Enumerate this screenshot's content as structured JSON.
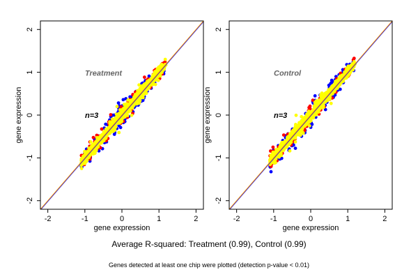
{
  "chart_data": [
    {
      "type": "scatter",
      "title": "Treatment",
      "annotation": "n=3",
      "xlabel": "gene expression",
      "ylabel": "gene expression",
      "xlim": [
        -2.2,
        2.2
      ],
      "ylim": [
        -2.2,
        2.2
      ],
      "xticks": [
        -2,
        -1,
        0,
        1,
        2
      ],
      "yticks": [
        -2,
        -1,
        0,
        1,
        2
      ],
      "x_range_points": [
        -1.1,
        1.2
      ],
      "diagonal_lines": [
        "y = x"
      ],
      "point_colors": [
        "#0000ff",
        "#ff0000",
        "#ffff00"
      ],
      "line_colors": [
        "#0000ff",
        "#ff9900"
      ]
    },
    {
      "type": "scatter",
      "title": "Control",
      "annotation": "n=3",
      "xlabel": "gene expression",
      "ylabel": "gene expression",
      "xlim": [
        -2.2,
        2.2
      ],
      "ylim": [
        -2.2,
        2.2
      ],
      "xticks": [
        -2,
        -1,
        0,
        1,
        2
      ],
      "yticks": [
        -2,
        -1,
        0,
        1,
        2
      ],
      "x_range_points": [
        -1.1,
        1.2
      ],
      "diagonal_lines": [
        "y = x"
      ],
      "point_colors": [
        "#0000ff",
        "#ff0000",
        "#ffff00"
      ],
      "line_colors": [
        "#0000ff",
        "#ff9900"
      ]
    }
  ],
  "captions": {
    "main": "Average R-squared: Treatment (0.99), Control (0.99)",
    "sub": "Genes detected at least one chip were plotted (detection p-value < 0.01)"
  }
}
